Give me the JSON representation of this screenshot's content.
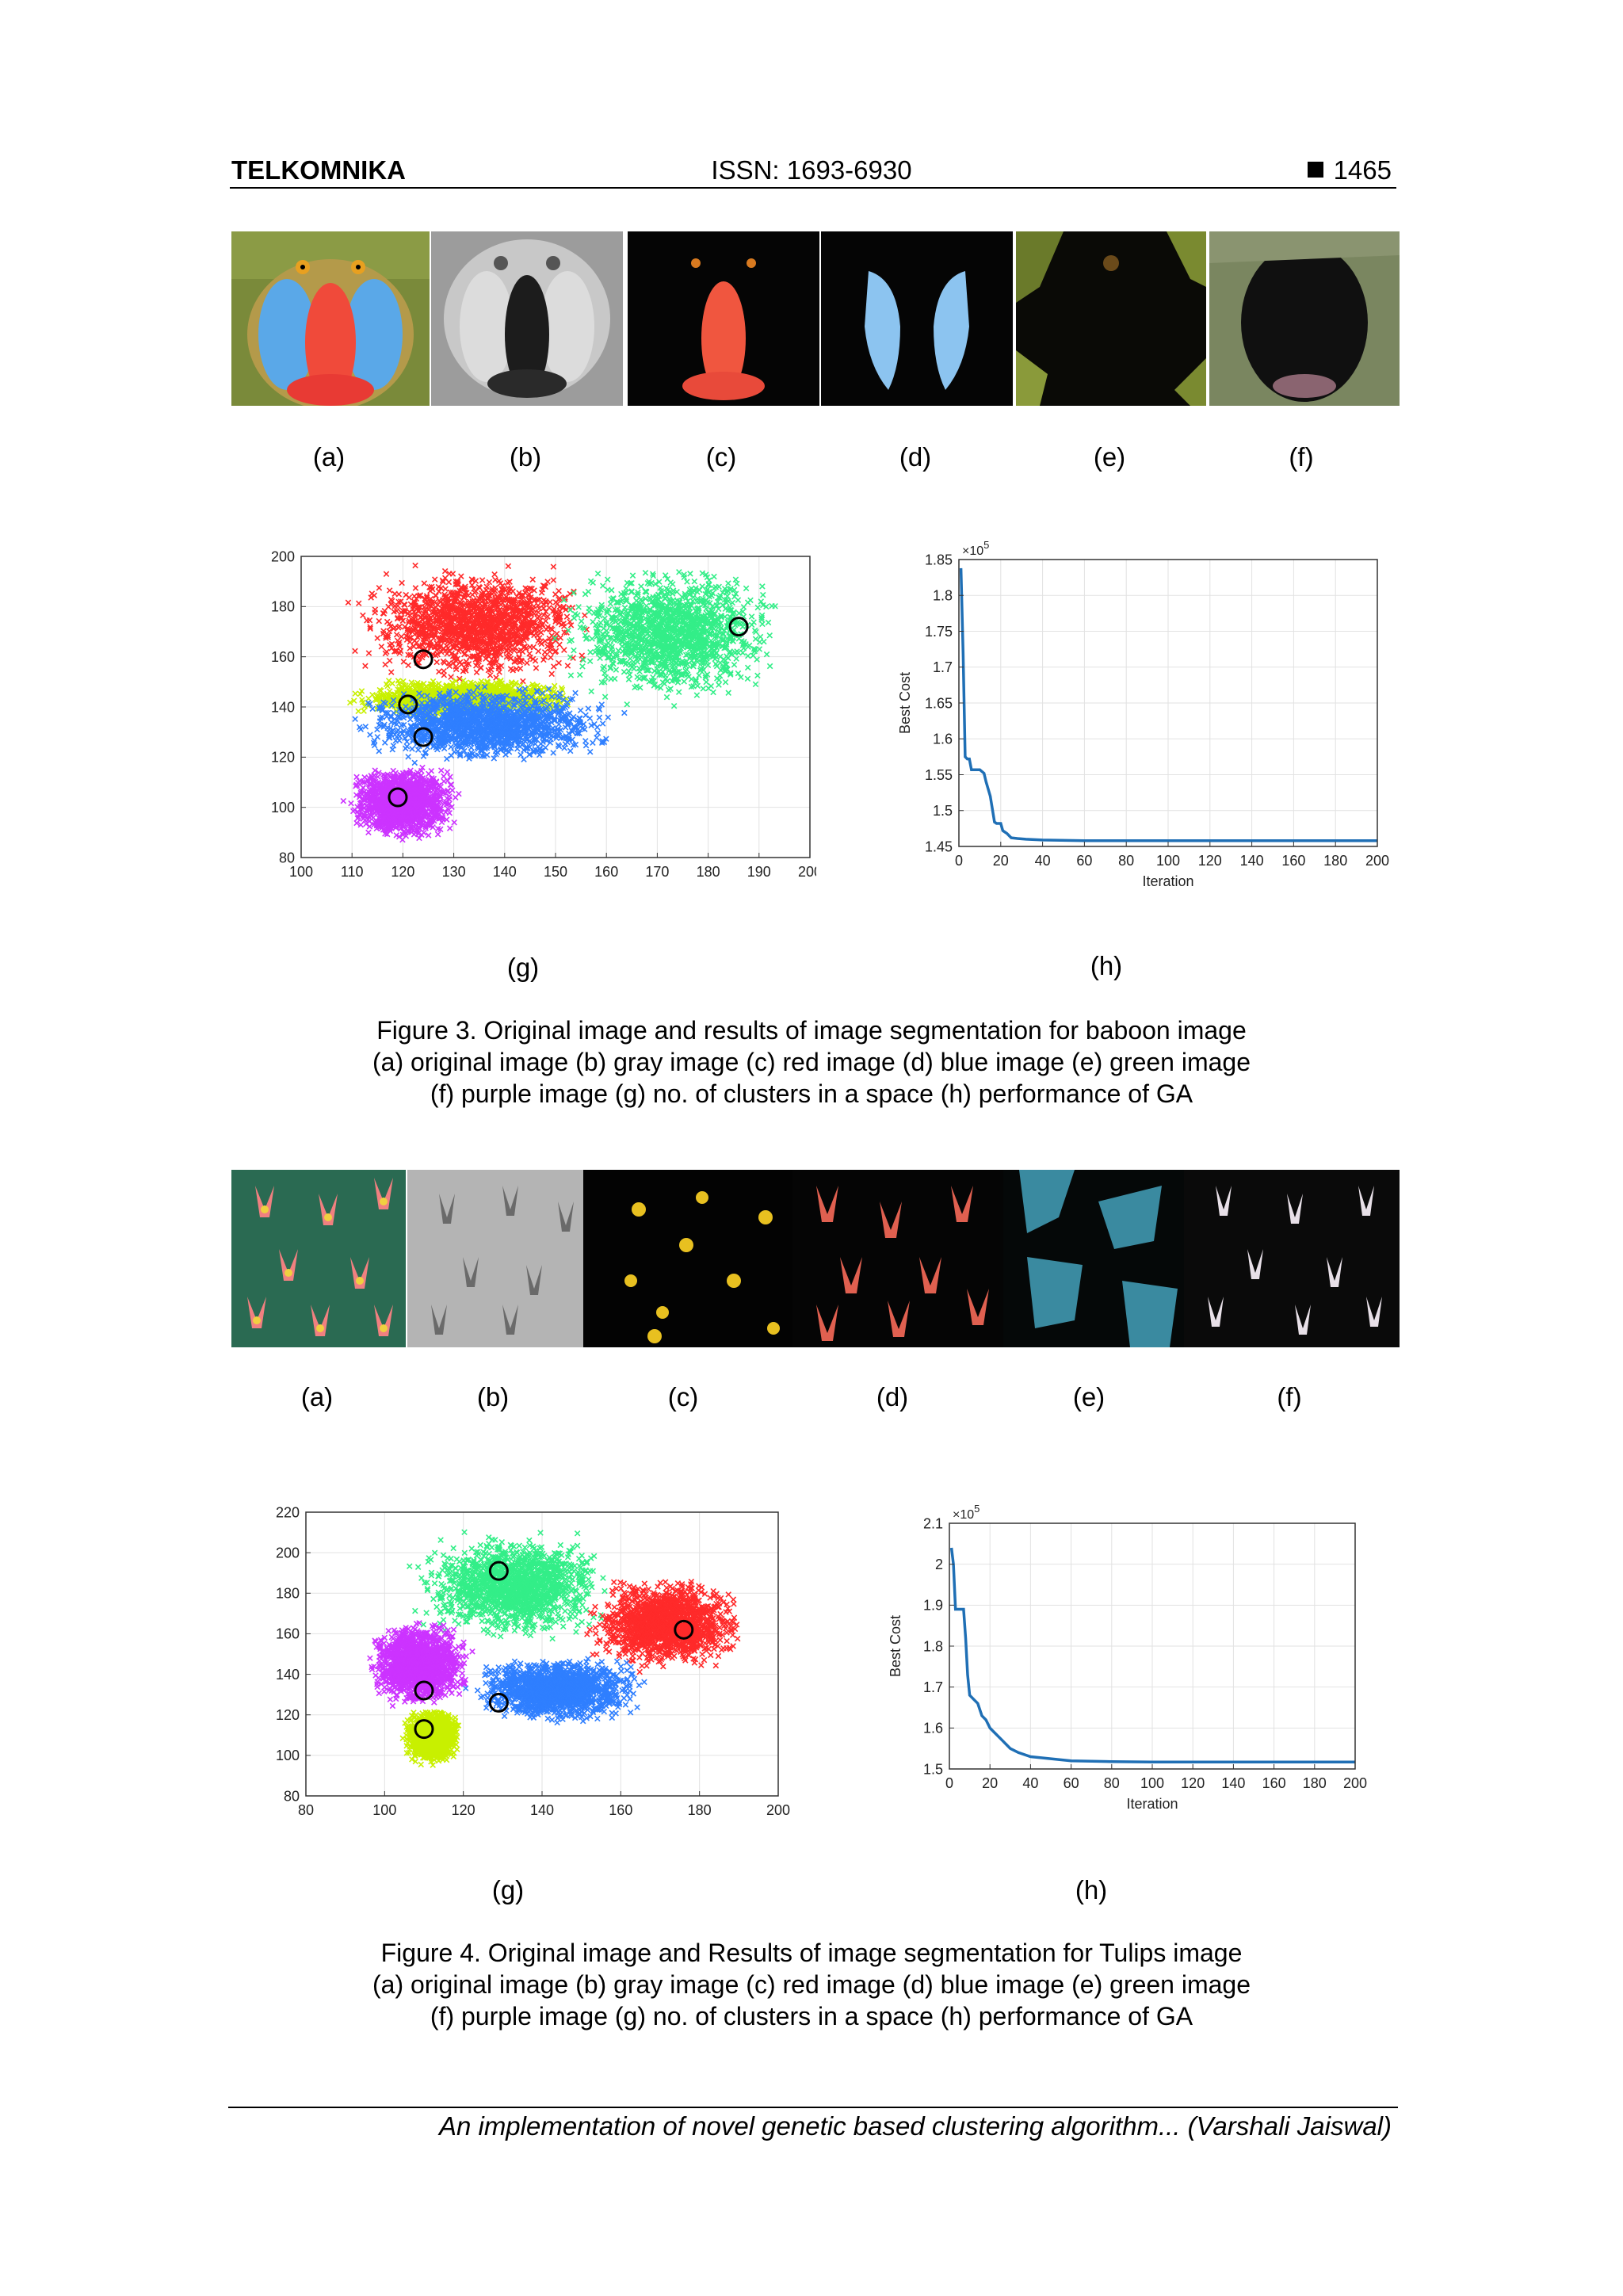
{
  "header": {
    "journal": "TELKOMNIKA",
    "issn": "ISSN: 1693-6930",
    "page_number": "1465"
  },
  "figure3": {
    "panels": [
      {
        "name": "baboon-original-image",
        "label": "(a)"
      },
      {
        "name": "baboon-gray-image",
        "label": "(b)"
      },
      {
        "name": "baboon-red-image",
        "label": "(c)"
      },
      {
        "name": "baboon-blue-image",
        "label": "(d)"
      },
      {
        "name": "baboon-green-image",
        "label": "(e)"
      },
      {
        "name": "baboon-purple-image",
        "label": "(f)"
      }
    ],
    "plot_labels": {
      "g": "(g)",
      "h": "(h)"
    },
    "caption": [
      "Figure 3. Original image and results of image segmentation for baboon image",
      "(a) original image (b) gray image (c) red image (d) blue image (e) green image",
      "(f) purple image (g) no. of clusters in a space (h) performance of GA"
    ]
  },
  "figure4": {
    "panels": [
      {
        "name": "tulips-original-image",
        "label": "(a)"
      },
      {
        "name": "tulips-gray-image",
        "label": "(b)"
      },
      {
        "name": "tulips-red-image",
        "label": "(c)"
      },
      {
        "name": "tulips-blue-image",
        "label": "(d)"
      },
      {
        "name": "tulips-green-image",
        "label": "(e)"
      },
      {
        "name": "tulips-purple-image",
        "label": "(f)"
      }
    ],
    "plot_labels": {
      "g": "(g)",
      "h": "(h)"
    },
    "caption": [
      "Figure 4. Original image and Results of image segmentation for Tulips image",
      "(a) original image (b) gray image (c) red image (d) blue image (e) green image",
      "(f) purple image (g) no. of clusters in a space (h) performance of GA"
    ]
  },
  "footer": {
    "text": "An implementation of novel genetic based clustering algorithm... (Varshali Jaiswal)"
  },
  "chart_data": [
    {
      "id": "fig3g",
      "type": "scatter",
      "title": "",
      "xlabel": "",
      "ylabel": "",
      "xlim": [
        100,
        200
      ],
      "ylim": [
        80,
        200
      ],
      "xticks": [
        100,
        110,
        120,
        130,
        140,
        150,
        160,
        170,
        180,
        190,
        200
      ],
      "yticks": [
        80,
        100,
        120,
        140,
        160,
        180,
        200
      ],
      "grid": true,
      "marker": "x",
      "clusters": [
        {
          "color": "#ff2a2a",
          "x_range": [
            108,
            160
          ],
          "y_range": [
            148,
            198
          ],
          "centroid": [
            124,
            159
          ]
        },
        {
          "color": "#c8f000",
          "x_range": [
            108,
            155
          ],
          "y_range": [
            135,
            152
          ],
          "centroid": [
            121,
            141
          ]
        },
        {
          "color": "#2f7fff",
          "x_range": [
            108,
            165
          ],
          "y_range": [
            116,
            150
          ],
          "centroid": [
            124,
            128
          ]
        },
        {
          "color": "#cc33ff",
          "x_range": [
            108,
            132
          ],
          "y_range": [
            86,
            118
          ],
          "centroid": [
            119,
            104
          ]
        },
        {
          "color": "#33ee88",
          "x_range": [
            148,
            197
          ],
          "y_range": [
            140,
            199
          ],
          "centroid": [
            186,
            172
          ]
        }
      ]
    },
    {
      "id": "fig3h",
      "type": "line",
      "title": "",
      "xlabel": "Iteration",
      "ylabel": "Best Cost",
      "y_multiplier": "×10^5",
      "xlim": [
        0,
        200
      ],
      "ylim": [
        1.45,
        1.85
      ],
      "xticks": [
        0,
        20,
        40,
        60,
        80,
        100,
        120,
        140,
        160,
        180,
        200
      ],
      "yticks": [
        1.45,
        1.5,
        1.55,
        1.6,
        1.65,
        1.7,
        1.75,
        1.8,
        1.85
      ],
      "grid": true,
      "series": [
        {
          "x": [
            1,
            2,
            3,
            4,
            5,
            6,
            8,
            10,
            12,
            13,
            15,
            17,
            18,
            20,
            21,
            23,
            25,
            28,
            32,
            40,
            60,
            100,
            150,
            200
          ],
          "y": [
            1.838,
            1.72,
            1.575,
            1.572,
            1.572,
            1.557,
            1.557,
            1.557,
            1.552,
            1.54,
            1.52,
            1.484,
            1.482,
            1.482,
            1.472,
            1.468,
            1.462,
            1.461,
            1.46,
            1.459,
            1.458,
            1.458,
            1.458,
            1.458
          ],
          "color": "#1f6fb5"
        }
      ]
    },
    {
      "id": "fig4g",
      "type": "scatter",
      "title": "",
      "xlabel": "",
      "ylabel": "",
      "xlim": [
        80,
        200
      ],
      "ylim": [
        80,
        220
      ],
      "xticks": [
        80,
        100,
        120,
        140,
        160,
        180,
        200
      ],
      "yticks": [
        80,
        100,
        120,
        140,
        160,
        180,
        200,
        220
      ],
      "grid": true,
      "marker": "x",
      "clusters": [
        {
          "color": "#33ee88",
          "x_range": [
            105,
            160
          ],
          "y_range": [
            155,
            212
          ],
          "centroid": [
            129,
            191
          ]
        },
        {
          "color": "#ff2a2a",
          "x_range": [
            150,
            192
          ],
          "y_range": [
            140,
            190
          ],
          "centroid": [
            176,
            162
          ]
        },
        {
          "color": "#cc33ff",
          "x_range": [
            95,
            123
          ],
          "y_range": [
            122,
            168
          ],
          "centroid": [
            110,
            132
          ]
        },
        {
          "color": "#2f7fff",
          "x_range": [
            120,
            168
          ],
          "y_range": [
            115,
            150
          ],
          "centroid": [
            129,
            126
          ]
        },
        {
          "color": "#c8f000",
          "x_range": [
            104,
            120
          ],
          "y_range": [
            95,
            124
          ],
          "centroid": [
            110,
            113
          ]
        }
      ]
    },
    {
      "id": "fig4h",
      "type": "line",
      "title": "",
      "xlabel": "Iteration",
      "ylabel": "Best Cost",
      "y_multiplier": "×10^5",
      "xlim": [
        0,
        200
      ],
      "ylim": [
        1.5,
        2.1
      ],
      "xticks": [
        0,
        20,
        40,
        60,
        80,
        100,
        120,
        140,
        160,
        180,
        200
      ],
      "yticks": [
        1.5,
        1.6,
        1.7,
        1.8,
        1.9,
        2,
        2.1
      ],
      "grid": true,
      "series": [
        {
          "x": [
            1,
            2,
            3,
            4,
            6,
            7,
            8,
            9,
            10,
            12,
            14,
            16,
            18,
            20,
            22,
            26,
            30,
            34,
            40,
            50,
            60,
            80,
            100,
            150,
            200
          ],
          "y": [
            2.04,
            2.0,
            1.89,
            1.89,
            1.89,
            1.89,
            1.82,
            1.73,
            1.68,
            1.67,
            1.66,
            1.63,
            1.62,
            1.6,
            1.59,
            1.57,
            1.55,
            1.54,
            1.53,
            1.525,
            1.52,
            1.518,
            1.517,
            1.517,
            1.517
          ],
          "color": "#1f6fb5"
        }
      ]
    }
  ]
}
